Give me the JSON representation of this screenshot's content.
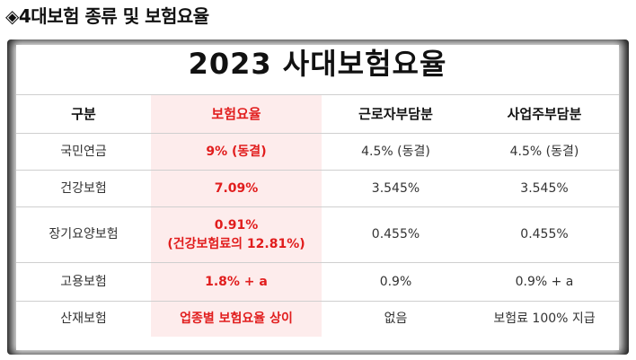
{
  "heading": "◈4대보험 종류 및 보험요율",
  "card_title": "2023 사대보험요율",
  "columns": [
    "구분",
    "보험요율",
    "근로자부담분",
    "사업주부담분"
  ],
  "rows": [
    {
      "category": "국민연금",
      "rate": "9% (동결)",
      "employee": "4.5% (동결)",
      "employer": "4.5% (동결)"
    },
    {
      "category": "건강보험",
      "rate": "7.09%",
      "employee": "3.545%",
      "employer": "3.545%"
    },
    {
      "category": "장기요양보험",
      "rate": "0.91%",
      "rate_note": "(건강보험료의 12.81%)",
      "employee": "0.455%",
      "employer": "0.455%"
    },
    {
      "category": "고용보험",
      "rate": "1.8% + a",
      "employee": "0.9%",
      "employer": "0.9% + a"
    },
    {
      "category": "산재보험",
      "rate": "업종별 보험요율 상이",
      "employee": "없음",
      "employer": "보험료 100% 지급"
    }
  ],
  "colors": {
    "highlight_text": "#e11d1d",
    "highlight_bg": "#fdecec",
    "frame": "#141414"
  }
}
